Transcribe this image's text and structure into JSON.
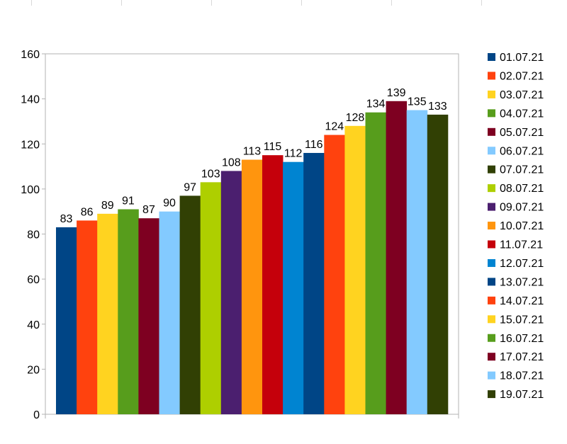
{
  "chart_data": {
    "type": "bar",
    "categories": [
      "01.07.21",
      "02.07.21",
      "03.07.21",
      "04.07.21",
      "05.07.21",
      "06.07.21",
      "07.07.21",
      "08.07.21",
      "09.07.21",
      "10.07.21",
      "11.07.21",
      "12.07.21",
      "13.07.21",
      "14.07.21",
      "15.07.21",
      "16.07.21",
      "17.07.21",
      "18.07.21",
      "19.07.21"
    ],
    "values": [
      83,
      86,
      89,
      91,
      87,
      90,
      97,
      103,
      108,
      113,
      115,
      112,
      116,
      124,
      128,
      134,
      139,
      135,
      133
    ],
    "colors": [
      "#004586",
      "#ff420e",
      "#ffd320",
      "#579d1c",
      "#7e0021",
      "#83caff",
      "#314004",
      "#aecf00",
      "#4b1f6f",
      "#ff950e",
      "#c5000b",
      "#0084d1",
      "#004586",
      "#ff420e",
      "#ffd320",
      "#579d1c",
      "#7e0021",
      "#83caff",
      "#314004"
    ],
    "ylim": [
      0,
      160
    ],
    "yticks": [
      "0",
      "20",
      "40",
      "60",
      "80",
      "100",
      "120",
      "140",
      "160"
    ],
    "title": "",
    "xlabel": "",
    "ylabel": "",
    "legend": "right",
    "grid": false
  }
}
